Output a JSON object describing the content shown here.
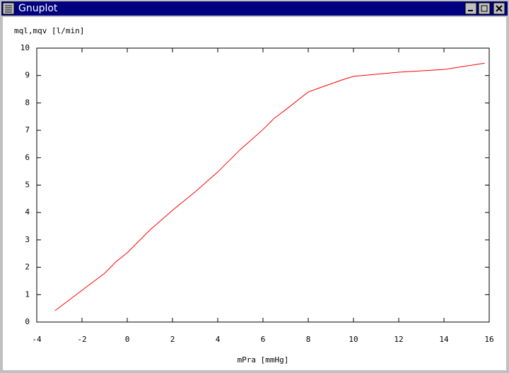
{
  "window": {
    "title": "Gnuplot"
  },
  "chart_data": {
    "type": "line",
    "ylabel": "mql,mqv [l/min]",
    "xlabel": "mPra [mmHg]",
    "x": [
      -3.2,
      -2,
      -1,
      -0.5,
      0,
      1,
      2,
      3,
      4,
      5,
      6,
      6.5,
      7,
      8,
      8.5,
      9.5,
      10,
      12,
      14,
      15.8
    ],
    "series": [
      {
        "color": "#ff0000",
        "values": [
          0.41,
          1.16,
          1.78,
          2.2,
          2.53,
          3.36,
          4.08,
          4.75,
          5.48,
          6.3,
          7.03,
          7.44,
          7.75,
          8.4,
          8.55,
          8.84,
          8.97,
          9.12,
          9.22,
          9.45
        ]
      }
    ],
    "xlim": [
      -4,
      16
    ],
    "xticks": [
      -4,
      -2,
      0,
      2,
      4,
      6,
      8,
      10,
      12,
      14,
      16
    ],
    "ylim": [
      0,
      10
    ],
    "yticks": [
      0,
      1,
      2,
      3,
      4,
      5,
      6,
      7,
      8,
      9,
      10
    ],
    "grid": false,
    "mirror_ticks": true
  }
}
